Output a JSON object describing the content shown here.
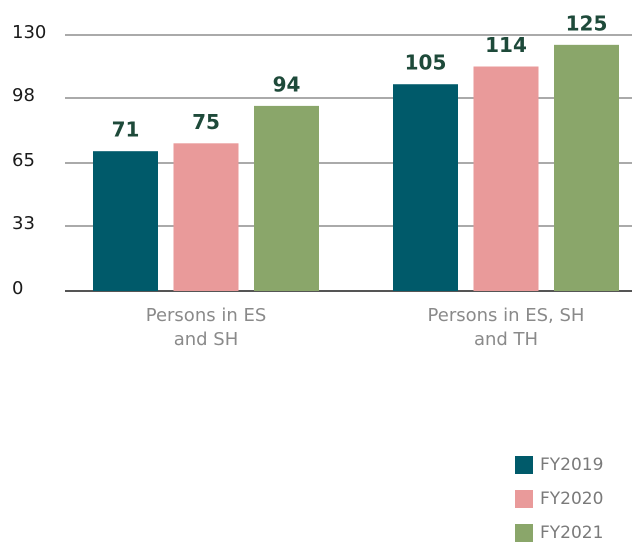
{
  "chart_data": {
    "type": "bar",
    "categories": [
      "Persons in ES and SH",
      "Persons in ES, SH and TH"
    ],
    "series": [
      {
        "name": "FY2019",
        "color": "#005a6a",
        "values": [
          71,
          105
        ]
      },
      {
        "name": "FY2020",
        "color": "#e99a9a",
        "values": [
          75,
          114
        ]
      },
      {
        "name": "FY2021",
        "color": "#8aa66a",
        "values": [
          94,
          125
        ]
      }
    ],
    "ylim": [
      0,
      130
    ],
    "yticks": [
      0,
      33,
      65,
      98,
      130
    ],
    "grid": true,
    "legend": "bottom-right"
  }
}
